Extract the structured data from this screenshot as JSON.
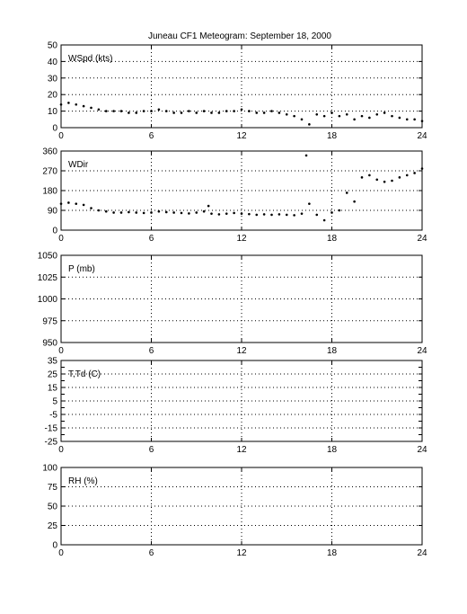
{
  "title": "Juneau CF1 Meteogram: September 18, 2000",
  "x_ticks": [
    "0",
    "6",
    "12",
    "18",
    "24"
  ],
  "chart_data": [
    {
      "type": "scatter",
      "label": "WSpd (kts)",
      "xlim": [
        0,
        24
      ],
      "ylim": [
        0,
        50
      ],
      "x_ticks": [
        0,
        6,
        12,
        18,
        24
      ],
      "y_ticks": [
        0,
        10,
        20,
        30,
        40,
        50
      ],
      "grid": true,
      "series": [
        {
          "values": [
            [
              0,
              14
            ],
            [
              0.5,
              15
            ],
            [
              1,
              14
            ],
            [
              1.5,
              13
            ],
            [
              2,
              12
            ],
            [
              2.5,
              11
            ],
            [
              3,
              10
            ],
            [
              3.5,
              10
            ],
            [
              4,
              10
            ],
            [
              4.5,
              9
            ],
            [
              5,
              9
            ],
            [
              5.5,
              10
            ],
            [
              6,
              10
            ],
            [
              6.5,
              11
            ],
            [
              7,
              10
            ],
            [
              7.5,
              9
            ],
            [
              8,
              9
            ],
            [
              8.5,
              10
            ],
            [
              9,
              9
            ],
            [
              9.5,
              10
            ],
            [
              10,
              9
            ],
            [
              10.5,
              9
            ],
            [
              11,
              10
            ],
            [
              11.5,
              10
            ],
            [
              12,
              11
            ],
            [
              12.5,
              10
            ],
            [
              13,
              9
            ],
            [
              13.5,
              9
            ],
            [
              14,
              10
            ],
            [
              14.5,
              9
            ],
            [
              15,
              8
            ],
            [
              15.5,
              7
            ],
            [
              16,
              5
            ],
            [
              16.5,
              2
            ],
            [
              17,
              8
            ],
            [
              17.5,
              7
            ],
            [
              18,
              9
            ],
            [
              18.5,
              7
            ],
            [
              19,
              8
            ],
            [
              19.5,
              5
            ],
            [
              20,
              7
            ],
            [
              20.5,
              6
            ],
            [
              21,
              8
            ],
            [
              21.5,
              9
            ],
            [
              22,
              7
            ],
            [
              22.5,
              6
            ],
            [
              23,
              5
            ],
            [
              23.5,
              5
            ],
            [
              24,
              4
            ]
          ]
        }
      ]
    },
    {
      "type": "scatter",
      "label": "WDir",
      "xlim": [
        0,
        24
      ],
      "ylim": [
        0,
        360
      ],
      "x_ticks": [
        0,
        6,
        12,
        18,
        24
      ],
      "y_ticks": [
        0,
        90,
        180,
        270,
        360
      ],
      "grid": true,
      "series": [
        {
          "values": [
            [
              0,
              120
            ],
            [
              0.5,
              125
            ],
            [
              1,
              120
            ],
            [
              1.5,
              115
            ],
            [
              2,
              100
            ],
            [
              2.5,
              90
            ],
            [
              3,
              85
            ],
            [
              3.5,
              80
            ],
            [
              4,
              80
            ],
            [
              4.5,
              82
            ],
            [
              5,
              80
            ],
            [
              5.5,
              78
            ],
            [
              6,
              80
            ],
            [
              6.5,
              85
            ],
            [
              7,
              82
            ],
            [
              7.5,
              80
            ],
            [
              8,
              78
            ],
            [
              8.5,
              76
            ],
            [
              9,
              80
            ],
            [
              9.5,
              85
            ],
            [
              9.8,
              110
            ],
            [
              10,
              75
            ],
            [
              10.5,
              72
            ],
            [
              11,
              75
            ],
            [
              11.5,
              78
            ],
            [
              12,
              75
            ],
            [
              12.5,
              73
            ],
            [
              13,
              70
            ],
            [
              13.5,
              72
            ],
            [
              14,
              70
            ],
            [
              14.5,
              72
            ],
            [
              15,
              70
            ],
            [
              15.5,
              68
            ],
            [
              16,
              75
            ],
            [
              16.3,
              340
            ],
            [
              16.5,
              120
            ],
            [
              17,
              70
            ],
            [
              17.5,
              45
            ],
            [
              18,
              80
            ],
            [
              18.5,
              90
            ],
            [
              19,
              170
            ],
            [
              19.5,
              130
            ],
            [
              20,
              240
            ],
            [
              20.5,
              250
            ],
            [
              21,
              230
            ],
            [
              21.5,
              220
            ],
            [
              22,
              225
            ],
            [
              22.5,
              240
            ],
            [
              23,
              250
            ],
            [
              23.5,
              260
            ],
            [
              24,
              280
            ]
          ]
        }
      ]
    },
    {
      "type": "scatter",
      "label": "P (mb)",
      "xlim": [
        0,
        24
      ],
      "ylim": [
        950,
        1050
      ],
      "x_ticks": [
        0,
        6,
        12,
        18,
        24
      ],
      "y_ticks": [
        950,
        975,
        1000,
        1025,
        1050
      ],
      "grid": true,
      "series": []
    },
    {
      "type": "scatter",
      "label": "T,Td (C)",
      "xlim": [
        0,
        24
      ],
      "ylim": [
        -25,
        35
      ],
      "x_ticks": [
        0,
        6,
        12,
        18,
        24
      ],
      "y_ticks": [
        -25,
        -15,
        -5,
        5,
        15,
        25,
        35
      ],
      "y_tick_labels": [
        "-25",
        "-15",
        "-5",
        "5",
        "15",
        "25",
        "35"
      ],
      "minor_y_ticks": [
        -20,
        -10,
        0,
        10,
        20,
        30
      ],
      "grid": true,
      "series": []
    },
    {
      "type": "scatter",
      "label": "RH (%)",
      "xlim": [
        0,
        24
      ],
      "ylim": [
        0,
        100
      ],
      "x_ticks": [
        0,
        6,
        12,
        18,
        24
      ],
      "y_ticks": [
        0,
        25,
        50,
        75,
        100
      ],
      "grid": true,
      "series": []
    }
  ]
}
